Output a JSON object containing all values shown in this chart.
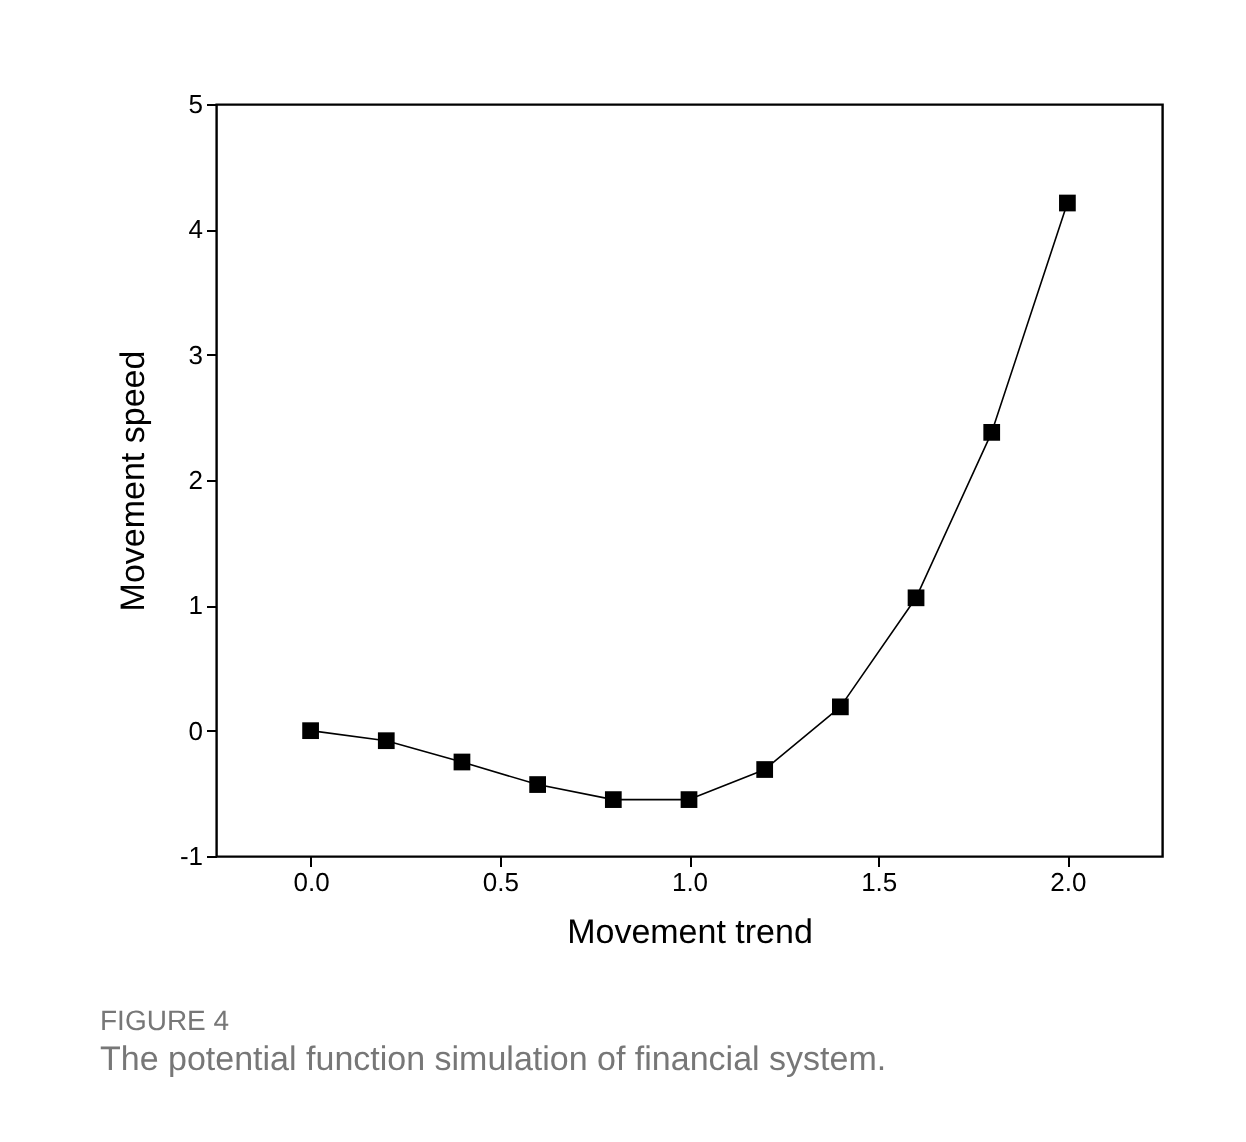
{
  "chart_data": {
    "type": "line",
    "title": "FIGURE 4",
    "subtitle": "The potential function simulation of financial system.",
    "xlabel": "Movement trend",
    "ylabel": "Movement speed",
    "x": [
      0,
      0.2,
      0.4,
      0.6,
      0.8,
      1.0,
      1.2,
      1.4,
      1.6,
      1.8,
      2.0
    ],
    "series": [
      {
        "color": "#000000",
        "values": [
          0,
          -0.08,
          -0.25,
          -0.43,
          -0.55,
          -0.55,
          -0.31,
          0.19,
          1.06,
          2.38,
          4.21
        ]
      }
    ],
    "xlim": [
      -0.25,
      2.25
    ],
    "xticks": [
      {
        "value": 0,
        "label": "0.0"
      },
      {
        "value": 0.5,
        "label": "0.5"
      },
      {
        "value": 1,
        "label": "1.0"
      },
      {
        "value": 1.5,
        "label": "1.5"
      },
      {
        "value": 2,
        "label": "2.0"
      }
    ],
    "ylim": [
      -1,
      5
    ],
    "yticks": [
      -1,
      0,
      1,
      2,
      3,
      4,
      5
    ],
    "grid": false,
    "marker": "square",
    "line_style": "solid"
  }
}
